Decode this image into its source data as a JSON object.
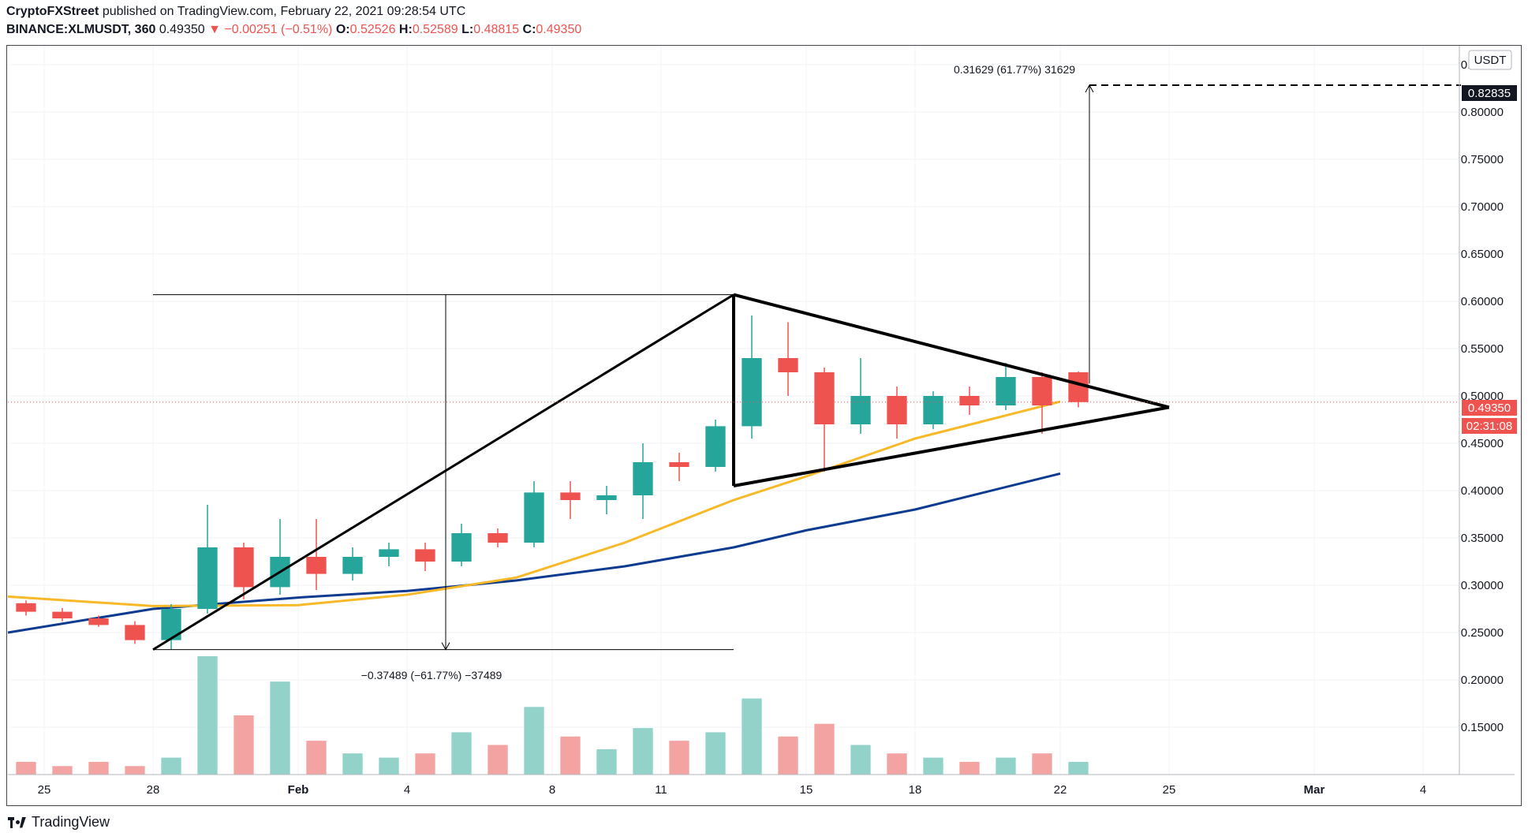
{
  "header": {
    "publisher": "CryptoFXStreet",
    "published_text": "published on TradingView.com, February 22, 2021 09:28:54 UTC",
    "symbol": "BINANCE:XLMUSDT, 360",
    "last_price": "0.49350",
    "change": "▼ −0.00251 (−0.51%)",
    "open_label": "O:",
    "open": "0.52526",
    "high_label": "H:",
    "high": "0.52589",
    "low_label": "L:",
    "low": "0.48815",
    "close_label": "C:",
    "close": "0.49350"
  },
  "axis": {
    "currency": "USDT",
    "price_ticks": [
      "0.85000",
      "0.80000",
      "0.75000",
      "0.70000",
      "0.65000",
      "0.60000",
      "0.55000",
      "0.50000",
      "0.45000",
      "0.40000",
      "0.35000",
      "0.30000",
      "0.25000",
      "0.20000",
      "0.15000"
    ],
    "date_ticks": [
      "25",
      "28",
      "Feb",
      "4",
      "8",
      "11",
      "15",
      "18",
      "22",
      "25",
      "Mar",
      "4"
    ]
  },
  "badges": {
    "target_price": "0.82835",
    "current_price": "0.49350",
    "countdown": "02:31:08"
  },
  "annotations": {
    "top_measure": "0.31629 (61.77%) 31629",
    "bottom_measure": "−0.37489 (−61.77%) −37489"
  },
  "footer": {
    "brand": "TradingView"
  },
  "colors": {
    "up": "#26a69a",
    "down": "#ef5350",
    "ema_short": "#f7b928",
    "ema_long": "#0d3b8f",
    "volume_up": "#93d2c9",
    "volume_down": "#f4a3a3"
  },
  "chart_data": {
    "type": "candlestick",
    "title": "",
    "xlabel": "",
    "ylabel": "USDT",
    "ylim": [
      0.1,
      0.87
    ],
    "x_range": [
      "2021-01-24",
      "2021-03-05"
    ],
    "candles_note": "6-hour bars (daily approximation below)",
    "candles": [
      {
        "d": "2021-01-24",
        "o": 0.281,
        "h": 0.284,
        "l": 0.268,
        "c": 0.272
      },
      {
        "d": "2021-01-25",
        "o": 0.272,
        "h": 0.276,
        "l": 0.262,
        "c": 0.265
      },
      {
        "d": "2021-01-26",
        "o": 0.265,
        "h": 0.268,
        "l": 0.256,
        "c": 0.258
      },
      {
        "d": "2021-01-27",
        "o": 0.258,
        "h": 0.262,
        "l": 0.238,
        "c": 0.242
      },
      {
        "d": "2021-01-28",
        "o": 0.242,
        "h": 0.28,
        "l": 0.232,
        "c": 0.275
      },
      {
        "d": "2021-01-29",
        "o": 0.275,
        "h": 0.385,
        "l": 0.27,
        "c": 0.34
      },
      {
        "d": "2021-01-30",
        "o": 0.34,
        "h": 0.345,
        "l": 0.285,
        "c": 0.298
      },
      {
        "d": "2021-01-31",
        "o": 0.298,
        "h": 0.37,
        "l": 0.29,
        "c": 0.33
      },
      {
        "d": "2021-02-01",
        "o": 0.33,
        "h": 0.37,
        "l": 0.295,
        "c": 0.312
      },
      {
        "d": "2021-02-02",
        "o": 0.312,
        "h": 0.34,
        "l": 0.305,
        "c": 0.33
      },
      {
        "d": "2021-02-03",
        "o": 0.33,
        "h": 0.345,
        "l": 0.32,
        "c": 0.338
      },
      {
        "d": "2021-02-04",
        "o": 0.338,
        "h": 0.345,
        "l": 0.315,
        "c": 0.325
      },
      {
        "d": "2021-02-05",
        "o": 0.325,
        "h": 0.365,
        "l": 0.32,
        "c": 0.355
      },
      {
        "d": "2021-02-06",
        "o": 0.355,
        "h": 0.36,
        "l": 0.34,
        "c": 0.345
      },
      {
        "d": "2021-02-07",
        "o": 0.345,
        "h": 0.41,
        "l": 0.34,
        "c": 0.398
      },
      {
        "d": "2021-02-08",
        "o": 0.398,
        "h": 0.41,
        "l": 0.37,
        "c": 0.39
      },
      {
        "d": "2021-02-09",
        "o": 0.39,
        "h": 0.405,
        "l": 0.375,
        "c": 0.395
      },
      {
        "d": "2021-02-10",
        "o": 0.395,
        "h": 0.45,
        "l": 0.37,
        "c": 0.43
      },
      {
        "d": "2021-02-11",
        "o": 0.43,
        "h": 0.44,
        "l": 0.41,
        "c": 0.425
      },
      {
        "d": "2021-02-12",
        "o": 0.425,
        "h": 0.475,
        "l": 0.42,
        "c": 0.468
      },
      {
        "d": "2021-02-13",
        "o": 0.468,
        "h": 0.585,
        "l": 0.455,
        "c": 0.54
      },
      {
        "d": "2021-02-14",
        "o": 0.54,
        "h": 0.578,
        "l": 0.5,
        "c": 0.525
      },
      {
        "d": "2021-02-15",
        "o": 0.525,
        "h": 0.53,
        "l": 0.42,
        "c": 0.47
      },
      {
        "d": "2021-02-16",
        "o": 0.47,
        "h": 0.54,
        "l": 0.46,
        "c": 0.5
      },
      {
        "d": "2021-02-17",
        "o": 0.5,
        "h": 0.51,
        "l": 0.455,
        "c": 0.47
      },
      {
        "d": "2021-02-18",
        "o": 0.47,
        "h": 0.505,
        "l": 0.465,
        "c": 0.5
      },
      {
        "d": "2021-02-19",
        "o": 0.5,
        "h": 0.51,
        "l": 0.48,
        "c": 0.49
      },
      {
        "d": "2021-02-20",
        "o": 0.49,
        "h": 0.535,
        "l": 0.485,
        "c": 0.52
      },
      {
        "d": "2021-02-21",
        "o": 0.52,
        "h": 0.525,
        "l": 0.46,
        "c": 0.49
      },
      {
        "d": "2021-02-22",
        "o": 0.525,
        "h": 0.526,
        "l": 0.488,
        "c": 0.4935
      }
    ],
    "ema_short": [
      {
        "d": "2021-01-24",
        "v": 0.288
      },
      {
        "d": "2021-01-28",
        "v": 0.278
      },
      {
        "d": "2021-02-01",
        "v": 0.279
      },
      {
        "d": "2021-02-04",
        "v": 0.29
      },
      {
        "d": "2021-02-07",
        "v": 0.308
      },
      {
        "d": "2021-02-10",
        "v": 0.345
      },
      {
        "d": "2021-02-13",
        "v": 0.39
      },
      {
        "d": "2021-02-15",
        "v": 0.415
      },
      {
        "d": "2021-02-18",
        "v": 0.455
      },
      {
        "d": "2021-02-22",
        "v": 0.494
      }
    ],
    "ema_long": [
      {
        "d": "2021-01-24",
        "v": 0.25
      },
      {
        "d": "2021-01-28",
        "v": 0.275
      },
      {
        "d": "2021-02-01",
        "v": 0.287
      },
      {
        "d": "2021-02-04",
        "v": 0.294
      },
      {
        "d": "2021-02-07",
        "v": 0.305
      },
      {
        "d": "2021-02-10",
        "v": 0.32
      },
      {
        "d": "2021-02-13",
        "v": 0.34
      },
      {
        "d": "2021-02-15",
        "v": 0.358
      },
      {
        "d": "2021-02-18",
        "v": 0.38
      },
      {
        "d": "2021-02-22",
        "v": 0.418
      }
    ],
    "volume": [
      3,
      2,
      3,
      2,
      4,
      28,
      14,
      22,
      8,
      5,
      4,
      5,
      10,
      7,
      16,
      9,
      6,
      11,
      8,
      10,
      18,
      9,
      12,
      7,
      5,
      4,
      3,
      4,
      5,
      3
    ],
    "volume_up": [
      false,
      false,
      false,
      false,
      true,
      true,
      false,
      true,
      false,
      true,
      true,
      false,
      true,
      false,
      true,
      false,
      true,
      true,
      false,
      true,
      true,
      false,
      false,
      true,
      false,
      true,
      false,
      true,
      false,
      true
    ],
    "drawings": {
      "pole": {
        "from": {
          "d": "2021-01-28",
          "v": 0.232
        },
        "to": {
          "d": "2021-02-13",
          "v": 0.607
        }
      },
      "triangle_upper": {
        "from": {
          "d": "2021-02-13",
          "v": 0.607
        },
        "to": {
          "d": "2021-02-25",
          "v": 0.488
        }
      },
      "triangle_lower": {
        "from": {
          "d": "2021-02-13",
          "v": 0.405
        },
        "to": {
          "d": "2021-02-25",
          "v": 0.488
        }
      },
      "pole_measure_top": 0.607,
      "pole_measure_bottom": 0.232,
      "target_from": 0.513,
      "target": 0.82835,
      "current_price": 0.4935
    },
    "grid": true,
    "legend": "none"
  }
}
